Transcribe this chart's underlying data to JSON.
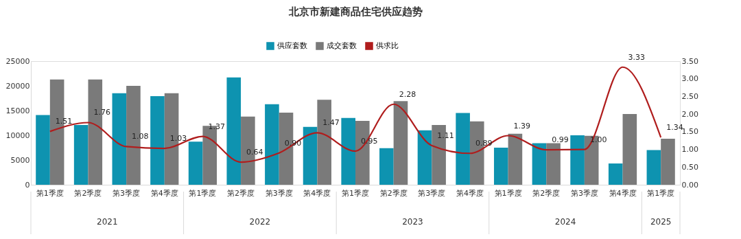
{
  "chart_data": {
    "type": "bar",
    "title": "北京市新建商品住宅供应趋势",
    "categories": [
      "第1季度",
      "第2季度",
      "第3季度",
      "第4季度",
      "第1季度",
      "第2季度",
      "第3季度",
      "第4季度",
      "第1季度",
      "第2季度",
      "第3季度",
      "第4季度",
      "第1季度",
      "第2季度",
      "第3季度",
      "第4季度",
      "第1季度"
    ],
    "annotations": [
      "2021",
      "2022",
      "2023",
      "2024",
      "2025"
    ],
    "series": [
      {
        "name": "供应套数",
        "color": "#0e93b0",
        "values": [
          14100,
          12100,
          18500,
          17900,
          8700,
          21700,
          16300,
          11700,
          13500,
          7400,
          11000,
          14500,
          7500,
          8400,
          10000,
          4300,
          7000
        ]
      },
      {
        "name": "成交套数",
        "color": "#7a7a7a",
        "values": [
          21300,
          21300,
          20000,
          18500,
          11900,
          13800,
          14600,
          17200,
          12900,
          16900,
          12100,
          12800,
          10300,
          8400,
          9900,
          14300,
          9300
        ]
      },
      {
        "name": "供求比",
        "type": "line",
        "axis": "y2",
        "color": "#b01d1d",
        "values": [
          1.51,
          1.76,
          1.08,
          1.03,
          1.37,
          0.64,
          0.9,
          1.47,
          0.95,
          2.28,
          1.11,
          0.89,
          1.39,
          0.99,
          1.0,
          3.33,
          1.34
        ],
        "value_labels": [
          "1.51",
          "1.76",
          "1.08",
          "1.03",
          "1.37",
          "0.64",
          "0.90",
          "1.47",
          "0.95",
          "2.28",
          "1.11",
          "0.89",
          "1.39",
          "0.99",
          "1.00",
          "3.33",
          "1.34"
        ]
      }
    ],
    "ylim": [
      0,
      25000
    ],
    "yticks": [
      0,
      5000,
      10000,
      15000,
      20000,
      25000
    ],
    "y2lim": [
      0,
      3.5
    ],
    "y2ticks": [
      {
        "value": 0,
        "label": "0.00"
      },
      {
        "value": 0.5,
        "label": "0.50"
      },
      {
        "value": 1,
        "label": "1.00"
      },
      {
        "value": 1.5,
        "label": "1.50"
      },
      {
        "value": 2,
        "label": "2.00"
      },
      {
        "value": 2.5,
        "label": "2.50"
      },
      {
        "value": 3,
        "label": "3.00"
      },
      {
        "value": 3.5,
        "label": "3.50"
      }
    ],
    "legend": "top",
    "grid": false
  }
}
